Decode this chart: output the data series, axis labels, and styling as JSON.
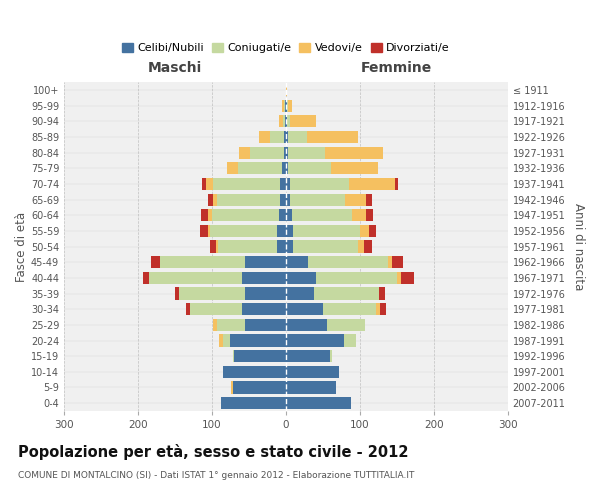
{
  "age_groups": [
    "0-4",
    "5-9",
    "10-14",
    "15-19",
    "20-24",
    "25-29",
    "30-34",
    "35-39",
    "40-44",
    "45-49",
    "50-54",
    "55-59",
    "60-64",
    "65-69",
    "70-74",
    "75-79",
    "80-84",
    "85-89",
    "90-94",
    "95-99",
    "100+"
  ],
  "birth_years": [
    "2007-2011",
    "2002-2006",
    "1997-2001",
    "1992-1996",
    "1987-1991",
    "1982-1986",
    "1977-1981",
    "1972-1976",
    "1967-1971",
    "1962-1966",
    "1957-1961",
    "1952-1956",
    "1947-1951",
    "1942-1946",
    "1937-1941",
    "1932-1936",
    "1927-1931",
    "1922-1926",
    "1917-1921",
    "1912-1916",
    "≤ 1911"
  ],
  "maschi": {
    "celibi": [
      88,
      72,
      85,
      70,
      75,
      55,
      60,
      55,
      60,
      55,
      12,
      12,
      10,
      8,
      8,
      5,
      3,
      3,
      1,
      1,
      0
    ],
    "coniugati": [
      0,
      0,
      0,
      2,
      10,
      38,
      70,
      90,
      125,
      115,
      80,
      90,
      90,
      85,
      90,
      60,
      45,
      18,
      3,
      2,
      0
    ],
    "vedovi": [
      0,
      2,
      0,
      0,
      5,
      5,
      0,
      0,
      0,
      0,
      2,
      4,
      5,
      5,
      10,
      15,
      15,
      15,
      5,
      2,
      0
    ],
    "divorziati": [
      0,
      0,
      0,
      0,
      0,
      0,
      5,
      5,
      8,
      12,
      8,
      10,
      10,
      8,
      5,
      0,
      0,
      0,
      0,
      0,
      0
    ]
  },
  "femmine": {
    "nubili": [
      88,
      68,
      72,
      60,
      78,
      55,
      50,
      38,
      40,
      30,
      10,
      10,
      8,
      5,
      5,
      3,
      3,
      3,
      1,
      1,
      0
    ],
    "coniugate": [
      0,
      0,
      0,
      2,
      17,
      52,
      72,
      88,
      110,
      108,
      88,
      90,
      82,
      75,
      80,
      58,
      50,
      25,
      5,
      2,
      0
    ],
    "vedove": [
      0,
      0,
      0,
      0,
      0,
      0,
      5,
      0,
      5,
      5,
      8,
      12,
      18,
      28,
      62,
      63,
      78,
      70,
      35,
      5,
      2
    ],
    "divorziate": [
      0,
      0,
      0,
      0,
      0,
      0,
      8,
      8,
      18,
      15,
      10,
      10,
      10,
      8,
      5,
      0,
      0,
      0,
      0,
      0,
      0
    ]
  },
  "colors": {
    "celibi": "#4472a0",
    "coniugati": "#c5d9a0",
    "vedovi": "#f5c060",
    "divorziati": "#c0302a"
  },
  "title": "Popolazione per età, sesso e stato civile - 2012",
  "subtitle": "COMUNE DI MONTALCINO (SI) - Dati ISTAT 1° gennaio 2012 - Elaborazione TUTTITALIA.IT",
  "xlabel_left": "Maschi",
  "xlabel_right": "Femmine",
  "ylabel_left": "Fasce di età",
  "ylabel_right": "Anni di nascita",
  "xlim": 300,
  "legend_labels": [
    "Celibi/Nubili",
    "Coniugati/e",
    "Vedovi/e",
    "Divorziati/e"
  ],
  "background_color": "#f0f0f0",
  "grid_color": "#bbbbbb"
}
